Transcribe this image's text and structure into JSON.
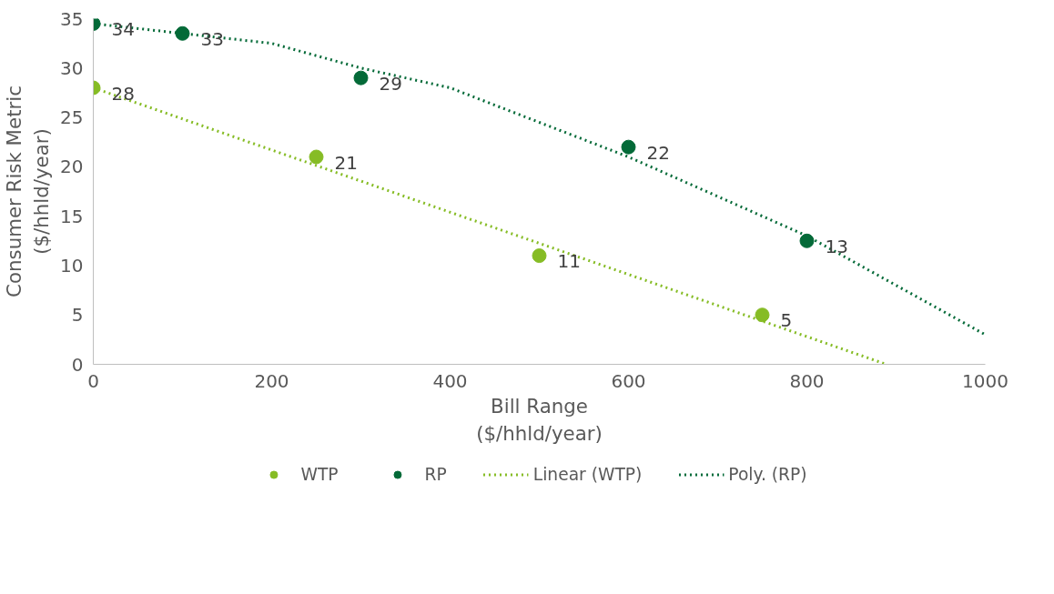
{
  "chart_data": {
    "type": "scatter",
    "xlabel": "Bill Range\n($/hhld/year)",
    "ylabel": "Consumer Risk Metric\n($/hhld/year)",
    "xlim": [
      0,
      1000
    ],
    "ylim": [
      0,
      35
    ],
    "xticks": [
      0,
      200,
      400,
      600,
      800,
      1000
    ],
    "yticks": [
      0,
      5,
      10,
      15,
      20,
      25,
      30,
      35
    ],
    "grid": false,
    "legend": "bottom",
    "marker": "circle",
    "series": [
      {
        "name": "WTP",
        "color": "#86bc25",
        "x": [
          0,
          250,
          500,
          750
        ],
        "values": [
          28,
          21,
          11,
          5
        ],
        "value_labels": [
          "28",
          "21",
          "11",
          "5"
        ]
      },
      {
        "name": "RP",
        "color": "#046a38",
        "x": [
          0,
          100,
          300,
          600,
          800
        ],
        "values": [
          34.5,
          33.5,
          29,
          22,
          12.5
        ],
        "value_labels": [
          "34",
          "33",
          "29",
          "22",
          "13"
        ]
      },
      {
        "name": "Linear (WTP)",
        "type": "line",
        "line_style": "dotted",
        "marker": "none",
        "color": "#86bc25",
        "x": [
          0,
          889
        ],
        "values": [
          28,
          0
        ]
      },
      {
        "name": "Poly. (RP)",
        "type": "line",
        "line_style": "dotted",
        "marker": "none",
        "color": "#046a38",
        "x": [
          0,
          100,
          200,
          300,
          400,
          500,
          600,
          700,
          800,
          900,
          1000
        ],
        "values": [
          34.5,
          33.5,
          32.5,
          30,
          28,
          24.5,
          21,
          17,
          13,
          8,
          3
        ]
      }
    ]
  }
}
